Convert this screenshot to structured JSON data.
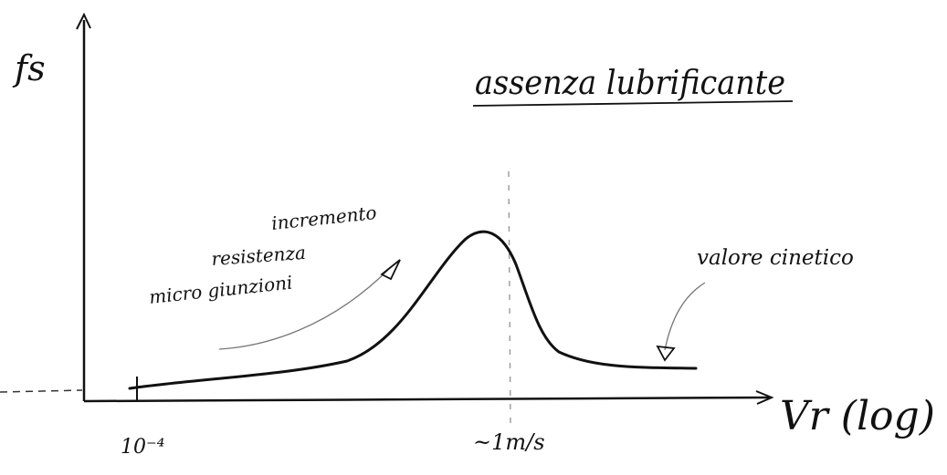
{
  "title": "assenza lubrificante",
  "y_axis_label": "fs",
  "x_axis_label": "Vr (log)",
  "x_tick_start": "10⁻⁴",
  "x_tick_peak": "~1m/s",
  "annotations": {
    "left": [
      "incremento",
      "resistenza",
      "micro giunzioni"
    ],
    "right": "valore cinetico"
  },
  "colors": {
    "ink": "#111111",
    "paper": "#ffffff"
  }
}
